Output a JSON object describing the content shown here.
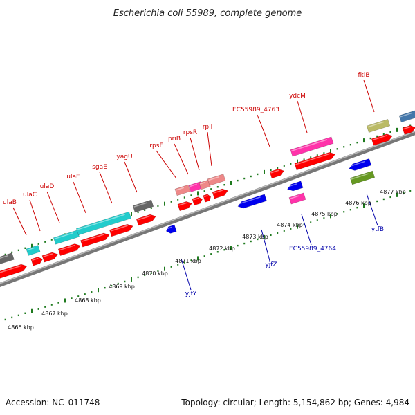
{
  "title": "Escherichia coli 55989, complete genome",
  "accession": "Accession: NC_011748",
  "topology": "Topology: circular; Length: 5,154,862 bp; Genes: 4,984",
  "colors": {
    "backbone": "#777777",
    "tick": "#1e7a1e",
    "label_red": "#cc0000",
    "label_blue": "#0000aa",
    "gene_red": "#ff0000",
    "gene_blue": "#0000ee",
    "gene_cyan": "#22cccc",
    "gene_pink": "#ff33aa",
    "gene_salmon": "#ee8888",
    "gene_gray": "#666666",
    "gene_khaki": "#bbbb66",
    "gene_olive": "#669922",
    "gene_steel": "#4477aa"
  },
  "kbp_labels": [
    "4866 kbp",
    "4867 kbp",
    "4868 kbp",
    "4869 kbp",
    "4870 kbp",
    "4871 kbp",
    "4872 kbp",
    "4873 kbp",
    "4874 kbp",
    "4875 kbp",
    "4876 kbp",
    "4877 kbp"
  ],
  "upper_gene_labels": [
    "ulaB",
    "ulaC",
    "ulaD",
    "ulaE",
    "sgaE",
    "yagU",
    "rpsF",
    "priB",
    "rpsR",
    "rplI",
    "EC55989_4763",
    "ydcM",
    "fklB"
  ],
  "lower_gene_labels": [
    "yjfY",
    "yjfZ",
    "EC55989_4764",
    "ytfB"
  ]
}
